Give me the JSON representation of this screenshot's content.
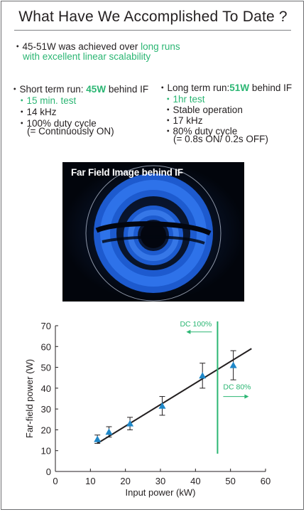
{
  "title": "What Have We Accomplished To Date ?",
  "summary": {
    "bullet": "・",
    "prefix": "45-51W was achieved over ",
    "highlight1": "long runs",
    "line2": "with excellent linear scalability"
  },
  "short_run": {
    "bullet": "・",
    "label_prefix": "Short term run: ",
    "power": "45W",
    "label_suffix": " behind IF",
    "items": [
      "15 min. test",
      "14 kHz",
      "100% duty cycle",
      "(= Continuously ON)"
    ]
  },
  "long_run": {
    "bullet": "・",
    "label_prefix": "Long term run:",
    "power": "51W",
    "label_suffix": " behind IF",
    "items": [
      "1hr test",
      "Stable operation",
      "17 kHz",
      "80% duty cycle",
      "(= 0.8s ON/ 0.2s OFF)"
    ]
  },
  "image": {
    "label": "Far Field Image behind IF"
  },
  "colors": {
    "accent": "#2bb673",
    "marker": "#1f88c9",
    "fit_line": "#231f20",
    "divider": "#2bb673"
  },
  "chart_data": {
    "type": "scatter",
    "xlabel": "Input power (kW)",
    "ylabel": "Far-field power (W)",
    "xlim": [
      0,
      60
    ],
    "ylim": [
      0,
      70
    ],
    "xticks": [
      0,
      10,
      20,
      30,
      40,
      50,
      60
    ],
    "yticks": [
      0,
      10,
      20,
      30,
      40,
      50,
      60,
      70
    ],
    "points": [
      {
        "x": 12,
        "y": 15.5,
        "err": 2
      },
      {
        "x": 15.3,
        "y": 19,
        "err": 2.5
      },
      {
        "x": 21.3,
        "y": 23,
        "err": 3
      },
      {
        "x": 30.5,
        "y": 31.5,
        "err": 4.5
      },
      {
        "x": 42,
        "y": 46,
        "err": 6
      },
      {
        "x": 50.8,
        "y": 51,
        "err": 7
      }
    ],
    "fit_line": {
      "x": [
        12,
        56
      ],
      "y": [
        13.5,
        59
      ]
    },
    "divider_x": 46.3,
    "annotations": [
      {
        "text": "DC 100%",
        "direction": "left",
        "y": 67
      },
      {
        "text": "DC 80%",
        "direction": "right",
        "y": 36
      }
    ]
  }
}
